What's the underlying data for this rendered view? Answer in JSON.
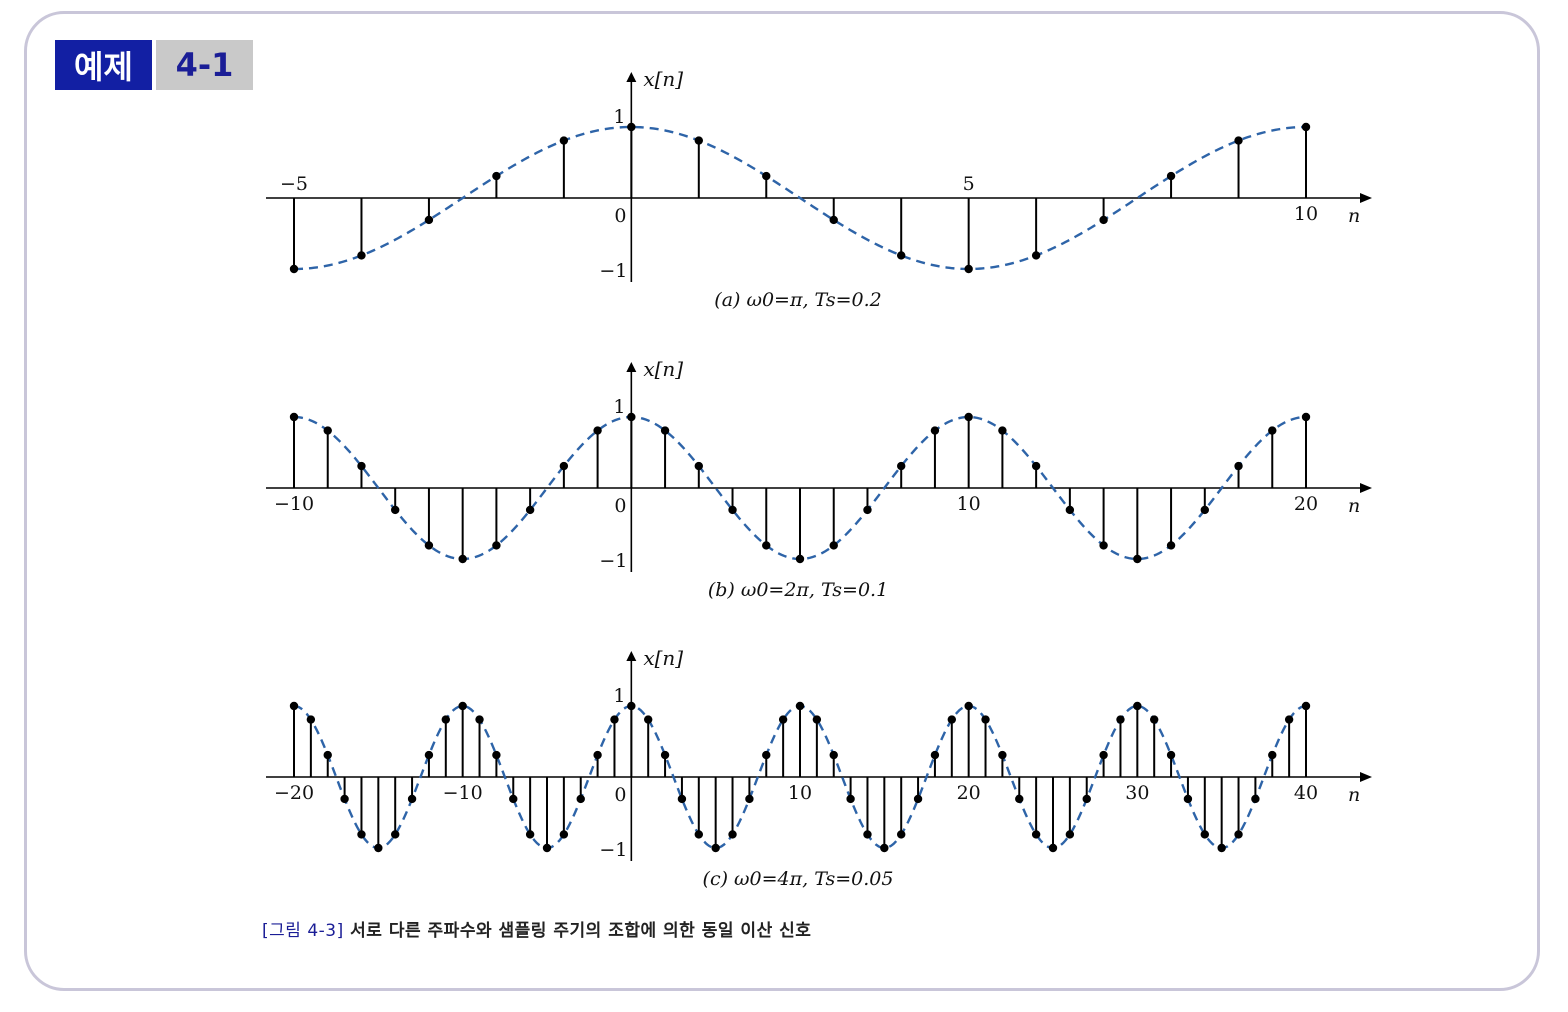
{
  "badge": {
    "label": "예제",
    "number": "4-1"
  },
  "figure_caption": {
    "number": "[그림 4-3]",
    "text": "서로 다른 주파수와 샘플링 주기의 조합에 의한 동일 이산 신호"
  },
  "colors": {
    "badge_label_bg": "#121fa3",
    "badge_number_bg": "#c9c9c9",
    "badge_number_text": "#1a1d96",
    "frame_border": "#c9c6d9",
    "curve": "#2e64a8",
    "stem": "#000000"
  },
  "chart_data": [
    {
      "type": "stem",
      "caption": "(a) ω0=π,  Ts=0.2",
      "ylabel": "x[n]",
      "xlabel": "n",
      "function": "cos(0.2πn)",
      "xlim": [
        -5,
        10
      ],
      "ylim": [
        -1,
        1
      ],
      "xticks": [
        "−5",
        "5",
        "10"
      ],
      "origin_label": "0",
      "yticks": [
        "1",
        "−1"
      ],
      "x": [
        -5,
        -4,
        -3,
        -2,
        -1,
        0,
        1,
        2,
        3,
        4,
        5,
        6,
        7,
        8,
        9,
        10
      ],
      "values": [
        -1,
        -0.809,
        -0.309,
        0.309,
        0.809,
        1,
        0.809,
        0.309,
        -0.309,
        -0.809,
        -1,
        -0.809,
        -0.309,
        0.309,
        0.809,
        1
      ]
    },
    {
      "type": "stem",
      "caption": "(b) ω0=2π,  Ts=0.1",
      "ylabel": "x[n]",
      "xlabel": "n",
      "function": "cos(0.2πn)",
      "xlim": [
        -10,
        20
      ],
      "ylim": [
        -1,
        1
      ],
      "xticks": [
        "−10",
        "10",
        "20"
      ],
      "origin_label": "0",
      "yticks": [
        "1",
        "−1"
      ],
      "x": [
        -10,
        -9,
        -8,
        -7,
        -6,
        -5,
        -4,
        -3,
        -2,
        -1,
        0,
        1,
        2,
        3,
        4,
        5,
        6,
        7,
        8,
        9,
        10,
        11,
        12,
        13,
        14,
        15,
        16,
        17,
        18,
        19,
        20
      ],
      "values": [
        1,
        0.809,
        0.309,
        -0.309,
        -0.809,
        -1,
        -0.809,
        -0.309,
        0.309,
        0.809,
        1,
        0.809,
        0.309,
        -0.309,
        -0.809,
        -1,
        -0.809,
        -0.309,
        0.309,
        0.809,
        1,
        0.809,
        0.309,
        -0.309,
        -0.809,
        -1,
        -0.809,
        -0.309,
        0.309,
        0.809,
        1
      ]
    },
    {
      "type": "stem",
      "caption": "(c) ω0=4π,  Ts=0.05",
      "ylabel": "x[n]",
      "xlabel": "n",
      "function": "cos(0.2πn)",
      "xlim": [
        -20,
        40
      ],
      "ylim": [
        -1,
        1
      ],
      "xticks": [
        "−20",
        "−10",
        "10",
        "20",
        "30",
        "40"
      ],
      "origin_label": "0",
      "yticks": [
        "1",
        "−1"
      ],
      "x": [
        -20,
        -19,
        -18,
        -17,
        -16,
        -15,
        -14,
        -13,
        -12,
        -11,
        -10,
        -9,
        -8,
        -7,
        -6,
        -5,
        -4,
        -3,
        -2,
        -1,
        0,
        1,
        2,
        3,
        4,
        5,
        6,
        7,
        8,
        9,
        10,
        11,
        12,
        13,
        14,
        15,
        16,
        17,
        18,
        19,
        20,
        21,
        22,
        23,
        24,
        25,
        26,
        27,
        28,
        29,
        30,
        31,
        32,
        33,
        34,
        35,
        36,
        37,
        38,
        39,
        40
      ],
      "values": [
        1,
        0.809,
        0.309,
        -0.309,
        -0.809,
        -1,
        -0.809,
        -0.309,
        0.309,
        0.809,
        1,
        0.809,
        0.309,
        -0.309,
        -0.809,
        -1,
        -0.809,
        -0.309,
        0.309,
        0.809,
        1,
        0.809,
        0.309,
        -0.309,
        -0.809,
        -1,
        -0.809,
        -0.309,
        0.309,
        0.809,
        1,
        0.809,
        0.309,
        -0.309,
        -0.809,
        -1,
        -0.809,
        -0.309,
        0.309,
        0.809,
        1,
        0.809,
        0.309,
        -0.309,
        -0.809,
        -1,
        -0.809,
        -0.309,
        0.309,
        0.809,
        1,
        0.809,
        0.309,
        -0.309,
        -0.809,
        -1,
        -0.809,
        -0.309,
        0.309,
        0.809,
        1
      ]
    }
  ]
}
